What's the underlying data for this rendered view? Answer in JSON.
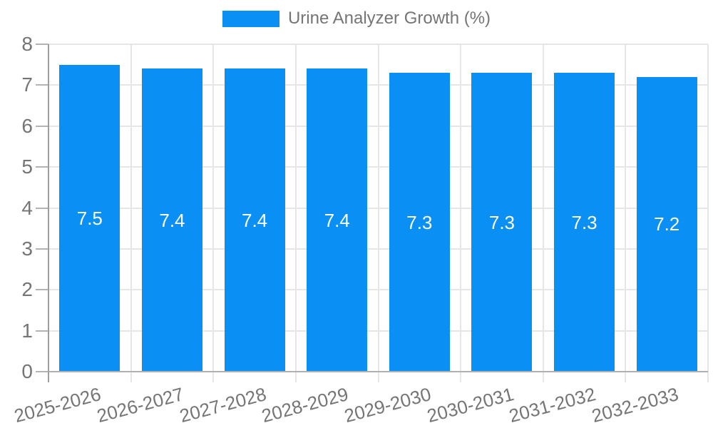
{
  "chart_data": {
    "type": "bar",
    "title": "Urine Analyzer Growth (%)",
    "categories": [
      "2025-2026",
      "2026-2027",
      "2027-2028",
      "2028-2029",
      "2029-2030",
      "2030-2031",
      "2031-2032",
      "2032-2033"
    ],
    "values": [
      7.5,
      7.4,
      7.4,
      7.4,
      7.3,
      7.3,
      7.3,
      7.2
    ],
    "value_labels": [
      "7.5",
      "7.4",
      "7.4",
      "7.4",
      "7.3",
      "7.3",
      "7.3",
      "7.2"
    ],
    "xlabel": "",
    "ylabel": "",
    "ylim": [
      0,
      8
    ],
    "y_ticks": [
      "0",
      "1",
      "2",
      "3",
      "4",
      "5",
      "6",
      "7",
      "8"
    ],
    "grid": true,
    "legend_position": "top",
    "legend_entries": [
      "Urine Analyzer Growth (%)"
    ],
    "colors": {
      "bar": "#0a90f5",
      "bar_label": "#ffffff",
      "axis_line": "#9e9e9e",
      "baseline": "#b0b0b0",
      "gridline": "#e6e6e6",
      "tick": "#b3b3b3",
      "text": "#757575"
    }
  }
}
